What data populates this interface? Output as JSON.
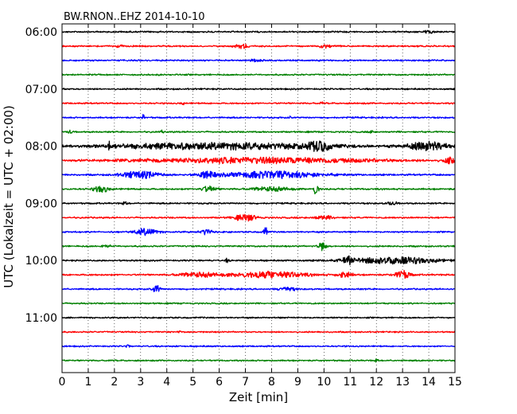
{
  "chart_data": {
    "type": "line",
    "title": "BW.RNON..EHZ 2014-10-10",
    "xlabel": "Zeit  [min]",
    "ylabel": "UTC (Lokalzeit = UTC + 02:00)",
    "xlim": [
      0,
      15
    ],
    "x_ticks": [
      "0",
      "1",
      "2",
      "3",
      "4",
      "5",
      "6",
      "7",
      "8",
      "9",
      "10",
      "11",
      "12",
      "13",
      "14",
      "15"
    ],
    "y_ticks": [
      "06:00",
      "07:00",
      "08:00",
      "09:00",
      "10:00",
      "11:00"
    ],
    "grid": "vertical dotted",
    "trace_colors": [
      "#000000",
      "#ff0000",
      "#0000ff",
      "#008000"
    ],
    "series": [
      {
        "start": "06:00",
        "base_amplitude": 0.12,
        "events": [
          {
            "t": 14.0,
            "amp": 0.35,
            "dur": 0.3
          }
        ]
      },
      {
        "start": "06:15",
        "base_amplitude": 0.12,
        "events": [
          {
            "t": 6.9,
            "amp": 0.6,
            "dur": 0.4
          },
          {
            "t": 10.0,
            "amp": 0.5,
            "dur": 0.4
          },
          {
            "t": 2.2,
            "amp": 0.35,
            "dur": 0.2
          }
        ]
      },
      {
        "start": "06:30",
        "base_amplitude": 0.12,
        "events": [
          {
            "t": 7.4,
            "amp": 0.35,
            "dur": 0.3
          }
        ]
      },
      {
        "start": "06:45",
        "base_amplitude": 0.12,
        "events": []
      },
      {
        "start": "07:00",
        "base_amplitude": 0.12,
        "events": []
      },
      {
        "start": "07:15",
        "base_amplitude": 0.12,
        "events": [
          {
            "t": 4.6,
            "amp": 0.3,
            "dur": 0.1
          },
          {
            "t": 9.9,
            "amp": 0.35,
            "dur": 0.1
          }
        ]
      },
      {
        "start": "07:30",
        "base_amplitude": 0.12,
        "events": [
          {
            "t": 3.1,
            "amp": 0.9,
            "dur": 0.06
          },
          {
            "t": 8.7,
            "amp": 0.35,
            "dur": 0.1
          }
        ]
      },
      {
        "start": "07:45",
        "base_amplitude": 0.12,
        "events": [
          {
            "t": 0.3,
            "amp": 0.55,
            "dur": 0.1
          },
          {
            "t": 3.8,
            "amp": 0.35,
            "dur": 0.1
          },
          {
            "t": 11.8,
            "amp": 0.35,
            "dur": 0.1
          }
        ]
      },
      {
        "start": "08:00",
        "base_amplitude": 0.12,
        "events": [
          {
            "t": 1.8,
            "amp": 1.3,
            "dur": 0.05
          },
          {
            "t": 6.0,
            "amp": 0.95,
            "dur": 6.5
          },
          {
            "t": 9.8,
            "amp": 1.2,
            "dur": 0.6
          },
          {
            "t": 14.0,
            "amp": 1.2,
            "dur": 1.2
          }
        ]
      },
      {
        "start": "08:15",
        "base_amplitude": 0.15,
        "events": [
          {
            "t": 7.5,
            "amp": 0.8,
            "dur": 6.5
          },
          {
            "t": 14.8,
            "amp": 0.8,
            "dur": 0.3
          }
        ]
      },
      {
        "start": "08:30",
        "base_amplitude": 0.15,
        "events": [
          {
            "t": 3.0,
            "amp": 1.0,
            "dur": 1.0
          },
          {
            "t": 8.0,
            "amp": 1.0,
            "dur": 2.5
          },
          {
            "t": 5.5,
            "amp": 0.8,
            "dur": 0.5
          }
        ]
      },
      {
        "start": "08:45",
        "base_amplitude": 0.15,
        "events": [
          {
            "t": 1.5,
            "amp": 0.9,
            "dur": 0.4
          },
          {
            "t": 5.6,
            "amp": 0.75,
            "dur": 0.4
          },
          {
            "t": 9.7,
            "amp": 1.6,
            "dur": 0.15
          },
          {
            "t": 8.0,
            "amp": 0.55,
            "dur": 1.0
          }
        ]
      },
      {
        "start": "09:00",
        "base_amplitude": 0.12,
        "events": [
          {
            "t": 2.4,
            "amp": 0.35,
            "dur": 0.2
          },
          {
            "t": 12.6,
            "amp": 0.4,
            "dur": 0.3
          }
        ]
      },
      {
        "start": "09:15",
        "base_amplitude": 0.12,
        "events": [
          {
            "t": 7.0,
            "amp": 0.95,
            "dur": 0.6
          },
          {
            "t": 10.0,
            "amp": 0.5,
            "dur": 0.5
          }
        ]
      },
      {
        "start": "09:30",
        "base_amplitude": 0.12,
        "events": [
          {
            "t": 3.2,
            "amp": 1.0,
            "dur": 0.6
          },
          {
            "t": 7.75,
            "amp": 2.2,
            "dur": 0.1
          },
          {
            "t": 5.5,
            "amp": 0.8,
            "dur": 0.3
          }
        ]
      },
      {
        "start": "09:45",
        "base_amplitude": 0.12,
        "events": [
          {
            "t": 9.95,
            "amp": 1.4,
            "dur": 0.2
          },
          {
            "t": 1.7,
            "amp": 0.35,
            "dur": 0.3
          }
        ]
      },
      {
        "start": "10:00",
        "base_amplitude": 0.12,
        "events": [
          {
            "t": 6.3,
            "amp": 0.5,
            "dur": 0.1
          },
          {
            "t": 12.6,
            "amp": 1.0,
            "dur": 2.4
          },
          {
            "t": 10.9,
            "amp": 1.0,
            "dur": 0.2
          }
        ]
      },
      {
        "start": "10:15",
        "base_amplitude": 0.15,
        "events": [
          {
            "t": 7.9,
            "amp": 0.9,
            "dur": 2.0
          },
          {
            "t": 13.0,
            "amp": 1.1,
            "dur": 0.4
          },
          {
            "t": 10.8,
            "amp": 0.8,
            "dur": 0.4
          },
          {
            "t": 5.2,
            "amp": 0.6,
            "dur": 1.0
          }
        ]
      },
      {
        "start": "10:30",
        "base_amplitude": 0.12,
        "events": [
          {
            "t": 3.6,
            "amp": 1.6,
            "dur": 0.2
          },
          {
            "t": 8.6,
            "amp": 0.7,
            "dur": 0.4
          }
        ]
      },
      {
        "start": "10:45",
        "base_amplitude": 0.1,
        "events": []
      },
      {
        "start": "11:00",
        "base_amplitude": 0.1,
        "events": []
      },
      {
        "start": "11:15",
        "base_amplitude": 0.1,
        "events": [
          {
            "t": 4.5,
            "amp": 0.3,
            "dur": 0.1
          }
        ]
      },
      {
        "start": "11:30",
        "base_amplitude": 0.1,
        "events": [
          {
            "t": 2.5,
            "amp": 0.45,
            "dur": 0.1
          }
        ]
      },
      {
        "start": "11:45",
        "base_amplitude": 0.1,
        "events": [
          {
            "t": 12.0,
            "amp": 0.4,
            "dur": 0.1
          }
        ]
      }
    ]
  }
}
